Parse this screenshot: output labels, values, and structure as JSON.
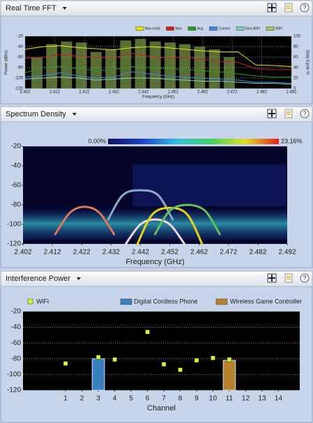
{
  "chart_data": [
    {
      "type": "line",
      "title": "Real Time FFT",
      "xlabel": "Frequency (GHz)",
      "ylabel": "Power (dBm)",
      "y2label": "Duty Cycle %",
      "xlim": [
        2.402,
        2.492
      ],
      "xticks": [
        2.402,
        2.412,
        2.422,
        2.432,
        2.442,
        2.452,
        2.462,
        2.472,
        2.482,
        2.492
      ],
      "ylim": [
        -120,
        -20
      ],
      "yticks": [
        -20,
        -40,
        -60,
        -80,
        -100,
        -120
      ],
      "y2lim": [
        0,
        100
      ],
      "y2ticks": [
        100,
        80,
        60,
        40,
        20,
        0
      ],
      "grid": true,
      "x": [
        2.402,
        2.408,
        2.414,
        2.42,
        2.426,
        2.432,
        2.438,
        2.444,
        2.45,
        2.456,
        2.462,
        2.468,
        2.474,
        2.48,
        2.486,
        2.492
      ],
      "series": [
        {
          "name": "Max-Hold",
          "color": "#e8e800",
          "values": [
            -45,
            -40,
            -38,
            -42,
            -44,
            -46,
            -42,
            -40,
            -42,
            -45,
            -48,
            -50,
            -50,
            -75,
            -76,
            -78
          ]
        },
        {
          "name": "Max",
          "color": "#d02020",
          "values": [
            -62,
            -60,
            -55,
            -58,
            -60,
            -62,
            -52,
            -58,
            -62,
            -60,
            -64,
            -68,
            -70,
            -82,
            -84,
            -84
          ]
        },
        {
          "name": "Avg",
          "color": "#20a020",
          "values": [
            -90,
            -80,
            -78,
            -82,
            -86,
            -84,
            -78,
            -80,
            -82,
            -84,
            -86,
            -88,
            -92,
            -96,
            -98,
            -98
          ]
        },
        {
          "name": "Current",
          "color": "#3a88e8",
          "values": [
            -98,
            -95,
            -90,
            -96,
            -100,
            -98,
            -88,
            -92,
            -96,
            -98,
            -100,
            -102,
            -104,
            -108,
            -108,
            -110
          ]
        },
        {
          "name": "Non-WiFi",
          "color": "#80d0c0",
          "values": [
            -102,
            -100,
            -98,
            -100,
            -104,
            -102,
            -100,
            -100,
            -102,
            -104,
            -106,
            -106,
            -108,
            -110,
            -110,
            -112
          ]
        },
        {
          "name": "WiFi",
          "color": "#a0c860",
          "type": "bar",
          "axis": "y2",
          "x": [
            2.406,
            2.411,
            2.416,
            2.421,
            2.426,
            2.431,
            2.436,
            2.441,
            2.446,
            2.451,
            2.456,
            2.461,
            2.466,
            2.471
          ],
          "values": [
            60,
            85,
            90,
            88,
            70,
            75,
            92,
            95,
            90,
            88,
            85,
            80,
            75,
            60
          ]
        }
      ]
    },
    {
      "type": "line",
      "title": "Spectrum Density",
      "xlabel": "Frequency (GHz)",
      "xlim": [
        2.402,
        2.492
      ],
      "xticks": [
        2.402,
        2.412,
        2.422,
        2.432,
        2.442,
        2.452,
        2.462,
        2.472,
        2.482,
        2.492
      ],
      "ylim": [
        -120,
        -20
      ],
      "yticks": [
        -20,
        -40,
        -60,
        -80,
        -100,
        -120
      ],
      "grid": false,
      "colorbar_ticks": [
        {
          "value": 0,
          "label": "0.00%"
        },
        {
          "value": 23.16,
          "label": "23.16%"
        }
      ],
      "series": [
        {
          "color": "#e07860",
          "x": [
            2.413,
            2.418,
            2.423,
            2.428,
            2.433
          ],
          "values": [
            -110,
            -88,
            -82,
            -88,
            -110
          ]
        },
        {
          "color": "#8aa8c8",
          "x": [
            2.431,
            2.436,
            2.442,
            2.448,
            2.453
          ],
          "values": [
            -95,
            -70,
            -65,
            -70,
            -95
          ]
        },
        {
          "color": "#f0d8e0",
          "x": [
            2.437,
            2.442,
            2.447,
            2.452,
            2.457
          ],
          "values": [
            -120,
            -100,
            -95,
            -100,
            -120
          ]
        },
        {
          "color": "#e8d020",
          "x": [
            2.441,
            2.446,
            2.452,
            2.458,
            2.463
          ],
          "values": [
            -120,
            -90,
            -83,
            -90,
            -120
          ]
        },
        {
          "color": "#60c060",
          "x": [
            2.447,
            2.452,
            2.458,
            2.464,
            2.469
          ],
          "values": [
            -110,
            -86,
            -80,
            -86,
            -110
          ]
        }
      ]
    },
    {
      "type": "scatter",
      "title": "Interference Power",
      "xlabel": "Channel",
      "xlim": [
        -1.6,
        15.3
      ],
      "xticks": [
        1,
        2,
        3,
        4,
        5,
        6,
        7,
        8,
        9,
        10,
        11,
        12,
        13,
        14
      ],
      "ylim": [
        -120,
        -20
      ],
      "yticks": [
        -20,
        -40,
        -60,
        -80,
        -100,
        -120
      ],
      "grid": true,
      "x": [
        1,
        2,
        3,
        4,
        5,
        6,
        7,
        8,
        9,
        10,
        11,
        12,
        13,
        14
      ],
      "series": [
        {
          "name": "WiFi",
          "color": "#ccff33",
          "values": [
            -86,
            null,
            -78,
            -81,
            null,
            -46,
            -87,
            -94,
            -82,
            -79,
            -81,
            null,
            null,
            null
          ]
        },
        {
          "name": "Digital Cordless Phone",
          "color": "#3a7fc0",
          "type": "bar",
          "values": [
            null,
            null,
            -80,
            null,
            null,
            null,
            null,
            null,
            null,
            null,
            null,
            null,
            null,
            null
          ]
        },
        {
          "name": "Wireless Game Controller",
          "color": "#b8822c",
          "type": "bar",
          "values": [
            null,
            null,
            null,
            null,
            null,
            null,
            null,
            null,
            null,
            null,
            -82,
            null,
            null,
            null
          ]
        }
      ]
    }
  ]
}
